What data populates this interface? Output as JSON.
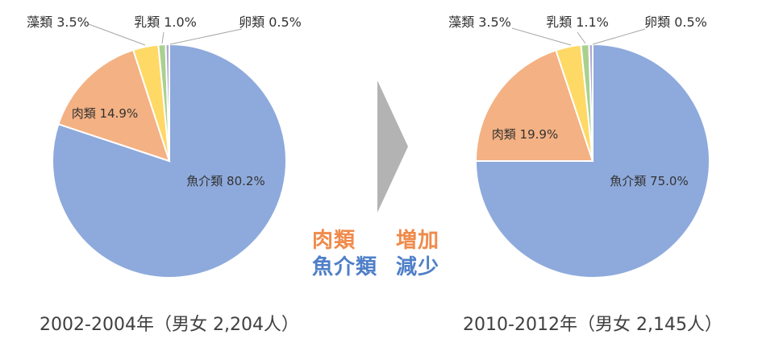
{
  "chart_data": [
    {
      "type": "pie",
      "caption": "2002-2004年（男女 2,204人）",
      "slices": [
        {
          "label": "魚介類",
          "value": 80.2,
          "value_text": "80.2%",
          "color": "#8eaadc"
        },
        {
          "label": "肉類",
          "value": 14.9,
          "value_text": "14.9%",
          "color": "#f4b183"
        },
        {
          "label": "藻類",
          "value": 3.5,
          "value_text": "3.5%",
          "color": "#ffd966"
        },
        {
          "label": "乳類",
          "value": 1.0,
          "value_text": "1.0%",
          "color": "#a9d18e"
        },
        {
          "label": "卵類",
          "value": 0.5,
          "value_text": "0.5%",
          "color": "#b4a7d6"
        }
      ]
    },
    {
      "type": "pie",
      "caption": "2010-2012年（男女 2,145人）",
      "slices": [
        {
          "label": "魚介類",
          "value": 75.0,
          "value_text": "75.0%",
          "color": "#8eaadc"
        },
        {
          "label": "肉類",
          "value": 19.9,
          "value_text": "19.9%",
          "color": "#f4b183"
        },
        {
          "label": "藻類",
          "value": 3.5,
          "value_text": "3.5%",
          "color": "#ffd966"
        },
        {
          "label": "乳類",
          "value": 1.1,
          "value_text": "1.1%",
          "color": "#a9d18e"
        },
        {
          "label": "卵類",
          "value": 0.5,
          "value_text": "0.5%",
          "color": "#b4a7d6"
        }
      ]
    }
  ],
  "annotation": {
    "meat": "肉類",
    "increase": "増加",
    "fish": "魚介類",
    "decrease": "減少",
    "meat_color": "#f08a4a",
    "fish_color": "#4f7fc8"
  },
  "arrow_color": "#b3b3b3"
}
